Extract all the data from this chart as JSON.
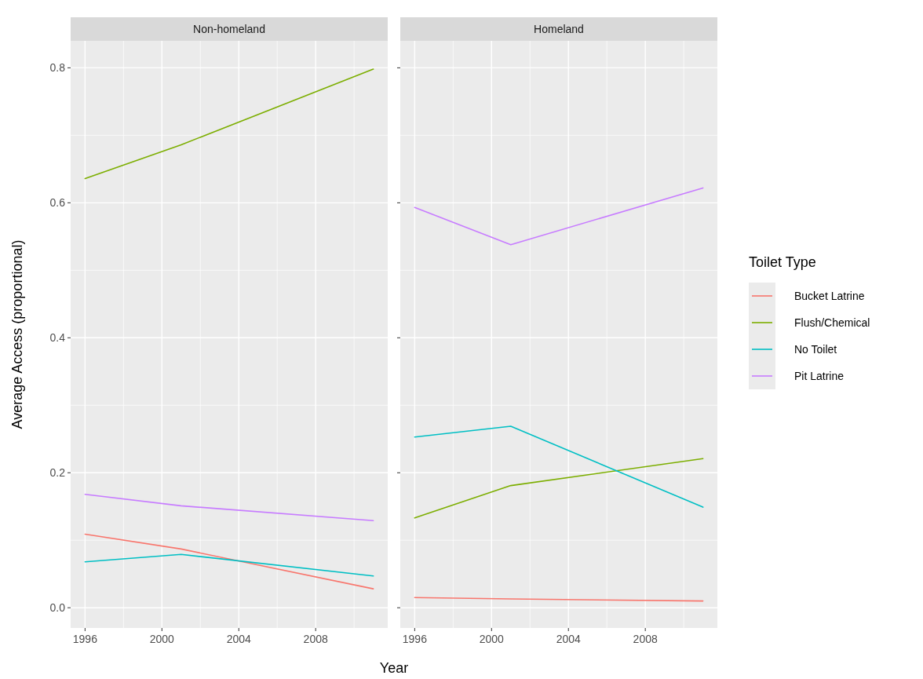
{
  "chart_data": [
    {
      "type": "line",
      "title": "Non-homeland",
      "xlabel": "Year",
      "ylabel": "Average Access (proportional)",
      "x": [
        1996,
        2001,
        2011
      ],
      "xlim": [
        1995.25,
        2011.75
      ],
      "xticks": [
        1996,
        2000,
        2004,
        2008
      ],
      "ylim": [
        -0.03,
        0.84
      ],
      "yticks": [
        {
          "value": 0,
          "label": "0.0"
        },
        0.2,
        0.4,
        0.6,
        0.8
      ],
      "grid": true,
      "legend": "right",
      "legend_title": "Toilet Type",
      "series": [
        {
          "name": "Bucket Latrine",
          "color": "#f8766d",
          "values": [
            0.109,
            0.087,
            0.028
          ]
        },
        {
          "name": "Flush/Chemical",
          "color": "#7cae00",
          "values": [
            0.636,
            0.686,
            0.798
          ]
        },
        {
          "name": "No Toilet",
          "color": "#00bfc4",
          "values": [
            0.068,
            0.079,
            0.047
          ]
        },
        {
          "name": "Pit Latrine",
          "color": "#c77cff",
          "values": [
            0.168,
            0.151,
            0.129
          ]
        }
      ]
    },
    {
      "type": "line",
      "title": "Homeland",
      "x": [
        1996,
        2001,
        2011
      ],
      "xlim": [
        1995.25,
        2011.75
      ],
      "xticks": [
        1996,
        2000,
        2004,
        2008
      ],
      "ylim": [
        -0.03,
        0.84
      ],
      "yticks": [
        0,
        0.2,
        0.4,
        0.6,
        0.8
      ],
      "tick_labels": "x",
      "grid": true,
      "series": [
        {
          "color": "#f8766d",
          "values": [
            0.015,
            0.013,
            0.01
          ]
        },
        {
          "color": "#7cae00",
          "values": [
            0.133,
            0.181,
            0.221
          ]
        },
        {
          "color": "#00bfc4",
          "values": [
            0.253,
            0.269,
            0.149
          ]
        },
        {
          "color": "#c77cff",
          "values": [
            0.593,
            0.538,
            0.622
          ]
        }
      ]
    }
  ]
}
